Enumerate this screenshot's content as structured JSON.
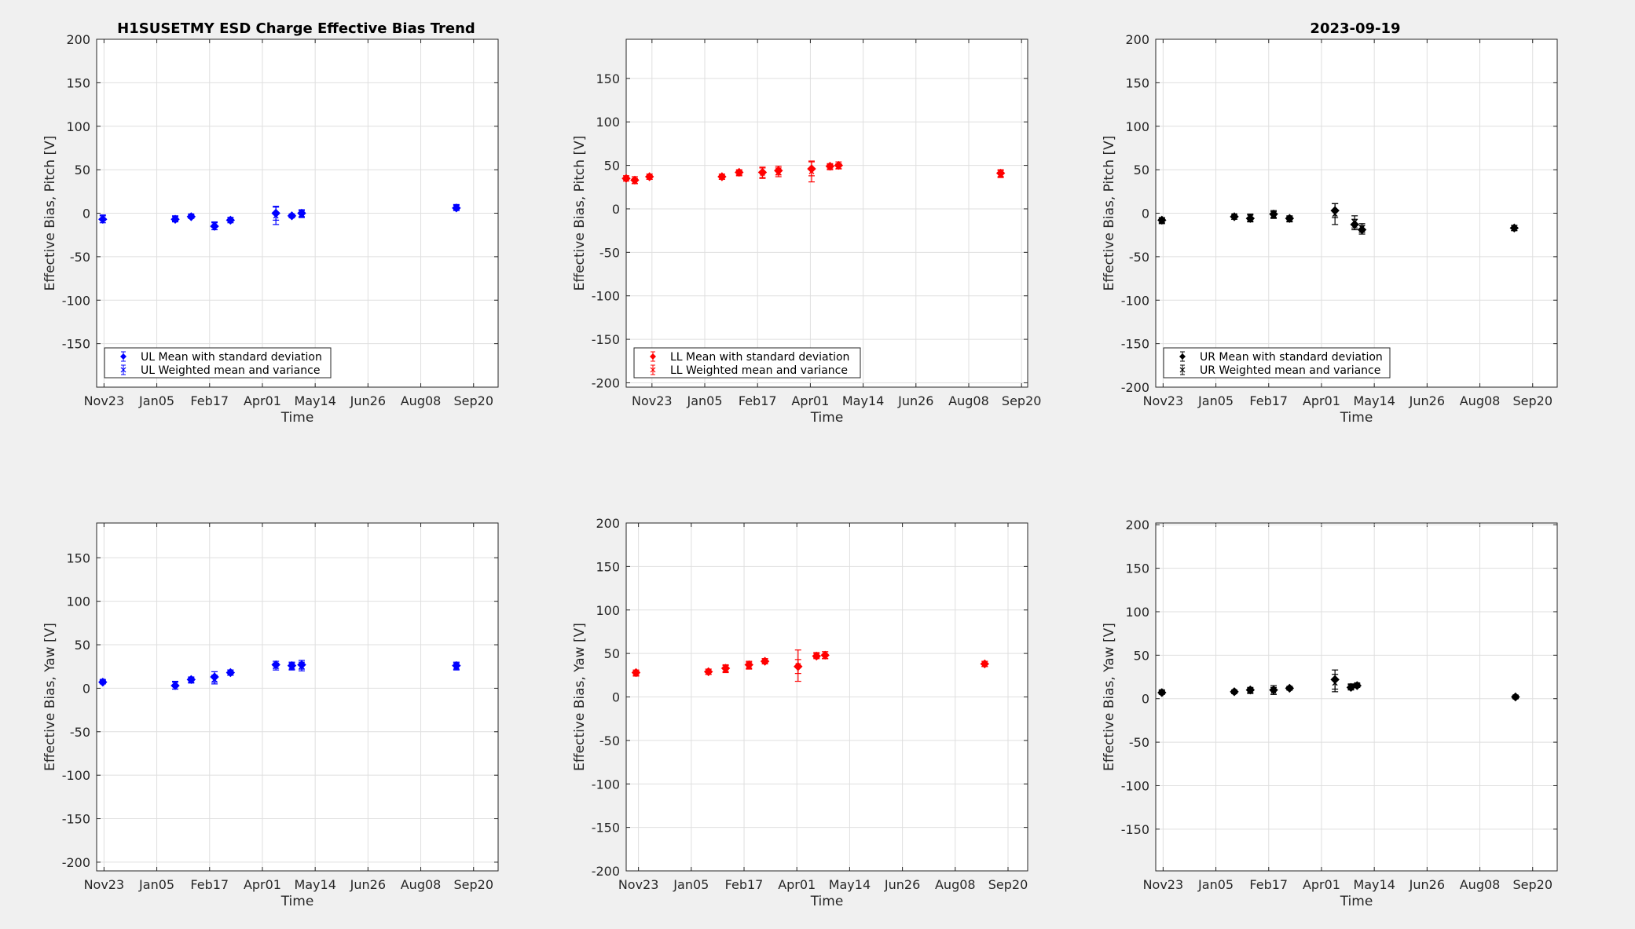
{
  "figure": {
    "suptitle_left": "H1SUSETMY ESD Charge Effective Bias Trend",
    "suptitle_right": "2023-09-19"
  },
  "chart_data": [
    {
      "type": "scatter",
      "panel": "UL-pitch",
      "xlabel": "Time",
      "ylabel": "Effective Bias, Pitch [V]",
      "x_ticks": [
        "Nov23",
        "Jan05",
        "Feb17",
        "Apr01",
        "May14",
        "Jun26",
        "Aug08",
        "Sep20"
      ],
      "y_ticks": [
        "-150",
        "-100",
        "-50",
        "0",
        "50",
        "100",
        "150",
        "200"
      ],
      "ylim": [
        -200,
        200
      ],
      "xlim_days_from_nov23": [
        -6,
        321
      ],
      "color": "#0000ff",
      "grid": true,
      "legend_position": "bottom-left",
      "legend": [
        "UL Mean with standard deviation",
        "UL Weighted mean and variance"
      ],
      "series": [
        {
          "name": "UL Mean with standard deviation",
          "x": [
            -1,
            58,
            71,
            90,
            103,
            140,
            153,
            161,
            287
          ],
          "y": [
            -7,
            -7,
            -4,
            -15,
            -8,
            0,
            -3,
            0,
            6
          ],
          "err": [
            4,
            3,
            2,
            4,
            3,
            8,
            2,
            4,
            3
          ]
        },
        {
          "name": "UL Weighted mean and variance",
          "x": [
            -1,
            58,
            71,
            90,
            103,
            140,
            153,
            161,
            287
          ],
          "y": [
            -5,
            -6,
            -3,
            -13,
            -7,
            -3,
            -3,
            -1,
            7
          ],
          "err": [
            3,
            3,
            2,
            3,
            2,
            10,
            2,
            4,
            3
          ]
        }
      ]
    },
    {
      "type": "scatter",
      "panel": "LL-pitch",
      "xlabel": "Time",
      "ylabel": "Effective Bias, Pitch [V]",
      "x_ticks": [
        "Nov23",
        "Jan05",
        "Feb17",
        "Apr01",
        "May14",
        "Jun26",
        "Aug08",
        "Sep20"
      ],
      "y_ticks": [
        "-200",
        "-150",
        "-100",
        "-50",
        "0",
        "50",
        "100",
        "150"
      ],
      "ylim": [
        -205,
        195
      ],
      "xlim_days_from_nov23": [
        -21,
        306
      ],
      "color": "#ff0000",
      "grid": true,
      "legend_position": "bottom-left",
      "legend": [
        "LL Mean with standard deviation",
        "LL Weighted mean and variance"
      ],
      "series": [
        {
          "name": "LL Mean with standard deviation",
          "x": [
            -21,
            -14,
            -2,
            57,
            71,
            90,
            103,
            130,
            145,
            152,
            284
          ],
          "y": [
            35,
            33,
            37,
            37,
            42,
            42,
            44,
            46,
            49,
            50,
            41
          ],
          "err": [
            3,
            4,
            3,
            3,
            3,
            6,
            5,
            8,
            3,
            4,
            4
          ]
        },
        {
          "name": "LL Weighted mean and variance",
          "x": [
            -21,
            -14,
            -2,
            57,
            71,
            90,
            103,
            130,
            145,
            152,
            284
          ],
          "y": [
            35,
            32,
            37,
            37,
            41,
            41,
            42,
            43,
            48,
            49,
            40
          ],
          "err": [
            3,
            3,
            3,
            3,
            3,
            6,
            5,
            12,
            3,
            3,
            4
          ]
        }
      ]
    },
    {
      "type": "scatter",
      "panel": "UR-pitch",
      "xlabel": "Time",
      "ylabel": "Effective Bias, Pitch [V]",
      "x_ticks": [
        "Nov23",
        "Jan05",
        "Feb17",
        "Apr01",
        "May14",
        "Jun26",
        "Aug08",
        "Sep20"
      ],
      "y_ticks": [
        "-200",
        "-150",
        "-100",
        "-50",
        "0",
        "50",
        "100",
        "150",
        "200"
      ],
      "ylim": [
        -200,
        200
      ],
      "xlim_days_from_nov23": [
        -6,
        321
      ],
      "color": "#000000",
      "grid": true,
      "legend_position": "bottom-left",
      "legend": [
        "UR Mean with standard deviation",
        "UR Weighted mean and variance"
      ],
      "series": [
        {
          "name": "UR Mean with standard deviation",
          "x": [
            -1,
            58,
            71,
            90,
            103,
            140,
            156,
            162,
            286
          ],
          "y": [
            -8,
            -4,
            -6,
            -1,
            -6,
            3,
            -13,
            -19,
            -17
          ],
          "err": [
            3,
            3,
            4,
            4,
            3,
            8,
            6,
            5,
            3
          ]
        },
        {
          "name": "UR Weighted mean and variance",
          "x": [
            -1,
            58,
            71,
            90,
            103,
            140,
            156,
            162,
            286
          ],
          "y": [
            -9,
            -3,
            -5,
            -2,
            -7,
            -1,
            -10,
            -17,
            -17
          ],
          "err": [
            3,
            2,
            4,
            4,
            3,
            12,
            7,
            5,
            3
          ]
        }
      ]
    },
    {
      "type": "scatter",
      "panel": "UL-yaw",
      "xlabel": "Time",
      "ylabel": "Effective Bias, Yaw [V]",
      "x_ticks": [
        "Nov23",
        "Jan05",
        "Feb17",
        "Apr01",
        "May14",
        "Jun26",
        "Aug08",
        "Sep20"
      ],
      "y_ticks": [
        "-200",
        "-150",
        "-100",
        "-50",
        "0",
        "50",
        "100",
        "150"
      ],
      "ylim": [
        -210,
        190
      ],
      "xlim_days_from_nov23": [
        -6,
        321
      ],
      "color": "#0000ff",
      "grid": true,
      "series": [
        {
          "name": "UL Mean with standard deviation",
          "x": [
            -1,
            58,
            71,
            90,
            103,
            140,
            153,
            161,
            287
          ],
          "y": [
            7,
            3,
            10,
            13,
            18,
            27,
            26,
            27,
            26
          ],
          "err": [
            2,
            4,
            3,
            6,
            3,
            4,
            4,
            5,
            4
          ]
        },
        {
          "name": "UL Weighted mean and variance",
          "x": [
            -1,
            58,
            71,
            90,
            103,
            140,
            153,
            161,
            287
          ],
          "y": [
            8,
            5,
            9,
            10,
            18,
            25,
            25,
            25,
            25
          ],
          "err": [
            2,
            3,
            3,
            5,
            3,
            4,
            4,
            5,
            4
          ]
        }
      ]
    },
    {
      "type": "scatter",
      "panel": "LL-yaw",
      "xlabel": "Time",
      "ylabel": "Effective Bias, Yaw [V]",
      "x_ticks": [
        "Nov23",
        "Jan05",
        "Feb17",
        "Apr01",
        "May14",
        "Jun26",
        "Aug08",
        "Sep20"
      ],
      "y_ticks": [
        "-200",
        "-150",
        "-100",
        "-50",
        "0",
        "50",
        "100",
        "150",
        "200"
      ],
      "ylim": [
        -200,
        200
      ],
      "xlim_days_from_nov23": [
        -10,
        317
      ],
      "color": "#ff0000",
      "grid": true,
      "series": [
        {
          "name": "LL Mean with standard deviation",
          "x": [
            -2,
            57,
            71,
            90,
            103,
            130,
            145,
            152,
            282
          ],
          "y": [
            28,
            29,
            33,
            37,
            41,
            35,
            47,
            48,
            38
          ],
          "err": [
            3,
            3,
            4,
            4,
            3,
            8,
            3,
            4,
            3
          ]
        },
        {
          "name": "LL Weighted mean and variance",
          "x": [
            -2,
            57,
            71,
            90,
            103,
            130,
            145,
            152,
            282
          ],
          "y": [
            27,
            29,
            32,
            36,
            41,
            36,
            48,
            48,
            38
          ],
          "err": [
            3,
            3,
            4,
            4,
            3,
            18,
            3,
            4,
            3
          ]
        }
      ]
    },
    {
      "type": "scatter",
      "panel": "UR-yaw",
      "xlabel": "Time",
      "ylabel": "Effective Bias, Yaw [V]",
      "x_ticks": [
        "Nov23",
        "Jan05",
        "Feb17",
        "Apr01",
        "May14",
        "Jun26",
        "Aug08",
        "Sep20"
      ],
      "y_ticks": [
        "-150",
        "-100",
        "-50",
        "0",
        "50",
        "100",
        "150",
        "200"
      ],
      "ylim": [
        -198,
        202
      ],
      "xlim_days_from_nov23": [
        -6,
        321
      ],
      "color": "#000000",
      "grid": true,
      "series": [
        {
          "name": "UR Mean with standard deviation",
          "x": [
            -1,
            58,
            71,
            90,
            103,
            140,
            153,
            158,
            287
          ],
          "y": [
            7,
            8,
            10,
            10,
            12,
            22,
            13,
            15,
            2
          ],
          "err": [
            2,
            2,
            3,
            5,
            2,
            11,
            3,
            2,
            2
          ]
        },
        {
          "name": "UR Weighted mean and variance",
          "x": [
            -1,
            58,
            71,
            90,
            103,
            140,
            153,
            158,
            287
          ],
          "y": [
            8,
            8,
            9,
            9,
            12,
            18,
            14,
            16,
            2
          ],
          "err": [
            2,
            2,
            3,
            4,
            2,
            10,
            3,
            2,
            2
          ]
        }
      ]
    }
  ]
}
